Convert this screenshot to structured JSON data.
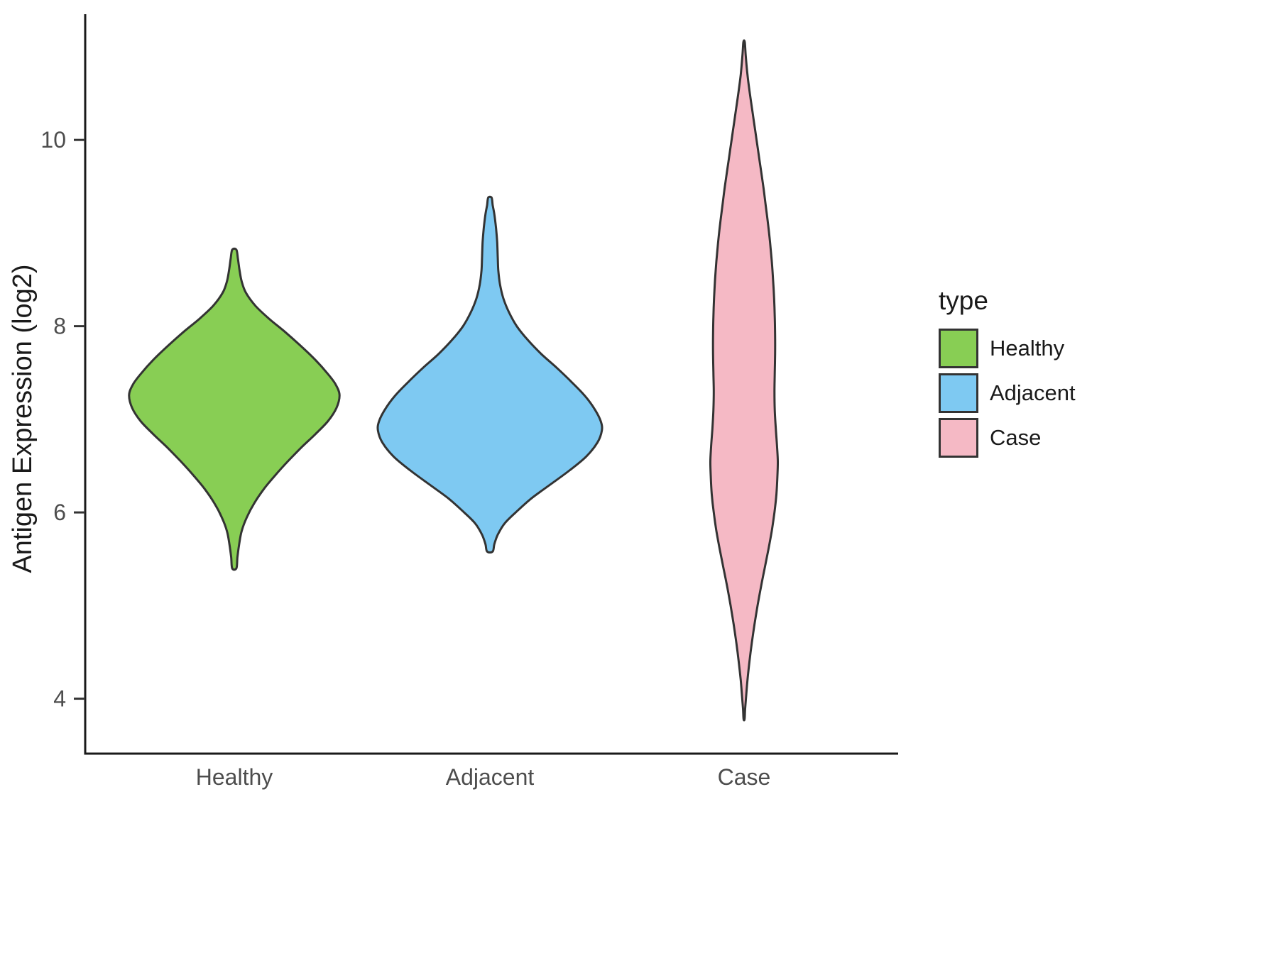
{
  "chart_data": {
    "type": "violin",
    "title": "",
    "xlabel": "",
    "ylabel": "Antigen Expression (log2)",
    "ylim": [
      3.41,
      11.35
    ],
    "y_ticks": [
      4,
      6,
      8,
      10
    ],
    "categories": [
      "Healthy",
      "Adjacent",
      "Case"
    ],
    "grid": false,
    "outline_color": "#333333",
    "legend": {
      "title": "type",
      "position": "right",
      "entries": [
        {
          "label": "Healthy",
          "color": "#88CE54"
        },
        {
          "label": "Adjacent",
          "color": "#7EC9F2"
        },
        {
          "label": "Case",
          "color": "#F5B9C5"
        }
      ]
    },
    "series": [
      {
        "name": "Healthy",
        "color": "#88CE54",
        "y_range": [
          5.4,
          8.82
        ],
        "max_halfwidth": 0.78,
        "profile": [
          [
            8.82,
            0.02
          ],
          [
            8.72,
            0.035
          ],
          [
            8.6,
            0.05
          ],
          [
            8.48,
            0.07
          ],
          [
            8.36,
            0.11
          ],
          [
            8.22,
            0.2
          ],
          [
            8.08,
            0.33
          ],
          [
            7.95,
            0.47
          ],
          [
            7.8,
            0.62
          ],
          [
            7.65,
            0.76
          ],
          [
            7.5,
            0.88
          ],
          [
            7.38,
            0.96
          ],
          [
            7.26,
            1.0
          ],
          [
            7.12,
            0.97
          ],
          [
            6.98,
            0.89
          ],
          [
            6.84,
            0.77
          ],
          [
            6.7,
            0.64
          ],
          [
            6.55,
            0.51
          ],
          [
            6.4,
            0.39
          ],
          [
            6.25,
            0.28
          ],
          [
            6.1,
            0.19
          ],
          [
            5.95,
            0.12
          ],
          [
            5.8,
            0.07
          ],
          [
            5.65,
            0.045
          ],
          [
            5.52,
            0.03
          ],
          [
            5.4,
            0.02
          ]
        ]
      },
      {
        "name": "Adjacent",
        "color": "#7EC9F2",
        "y_range": [
          5.58,
          9.38
        ],
        "max_halfwidth": 0.83,
        "profile": [
          [
            9.38,
            0.015
          ],
          [
            9.3,
            0.025
          ],
          [
            9.2,
            0.04
          ],
          [
            9.05,
            0.055
          ],
          [
            8.9,
            0.065
          ],
          [
            8.75,
            0.07
          ],
          [
            8.6,
            0.075
          ],
          [
            8.45,
            0.09
          ],
          [
            8.3,
            0.12
          ],
          [
            8.15,
            0.17
          ],
          [
            8.0,
            0.24
          ],
          [
            7.85,
            0.34
          ],
          [
            7.7,
            0.46
          ],
          [
            7.55,
            0.6
          ],
          [
            7.4,
            0.73
          ],
          [
            7.25,
            0.85
          ],
          [
            7.1,
            0.94
          ],
          [
            6.98,
            0.99
          ],
          [
            6.88,
            1.0
          ],
          [
            6.75,
            0.96
          ],
          [
            6.6,
            0.86
          ],
          [
            6.45,
            0.71
          ],
          [
            6.3,
            0.54
          ],
          [
            6.15,
            0.37
          ],
          [
            6.0,
            0.23
          ],
          [
            5.88,
            0.13
          ],
          [
            5.76,
            0.07
          ],
          [
            5.66,
            0.04
          ],
          [
            5.58,
            0.025
          ]
        ]
      },
      {
        "name": "Case",
        "color": "#F5B9C5",
        "y_range": [
          3.78,
          11.05
        ],
        "max_halfwidth": 0.25,
        "profile": [
          [
            11.05,
            0.02
          ],
          [
            10.9,
            0.05
          ],
          [
            10.7,
            0.1
          ],
          [
            10.5,
            0.17
          ],
          [
            10.3,
            0.25
          ],
          [
            10.1,
            0.33
          ],
          [
            9.9,
            0.41
          ],
          [
            9.7,
            0.49
          ],
          [
            9.5,
            0.57
          ],
          [
            9.3,
            0.64
          ],
          [
            9.1,
            0.71
          ],
          [
            8.9,
            0.77
          ],
          [
            8.7,
            0.82
          ],
          [
            8.5,
            0.86
          ],
          [
            8.3,
            0.89
          ],
          [
            8.1,
            0.91
          ],
          [
            7.9,
            0.92
          ],
          [
            7.7,
            0.92
          ],
          [
            7.5,
            0.91
          ],
          [
            7.3,
            0.9
          ],
          [
            7.1,
            0.91
          ],
          [
            6.9,
            0.94
          ],
          [
            6.7,
            0.98
          ],
          [
            6.55,
            1.0
          ],
          [
            6.4,
            0.99
          ],
          [
            6.2,
            0.96
          ],
          [
            6.0,
            0.9
          ],
          [
            5.8,
            0.82
          ],
          [
            5.6,
            0.72
          ],
          [
            5.4,
            0.61
          ],
          [
            5.2,
            0.5
          ],
          [
            5.0,
            0.4
          ],
          [
            4.8,
            0.31
          ],
          [
            4.6,
            0.23
          ],
          [
            4.4,
            0.16
          ],
          [
            4.2,
            0.1
          ],
          [
            4.0,
            0.055
          ],
          [
            3.88,
            0.03
          ],
          [
            3.78,
            0.015
          ]
        ]
      }
    ]
  }
}
